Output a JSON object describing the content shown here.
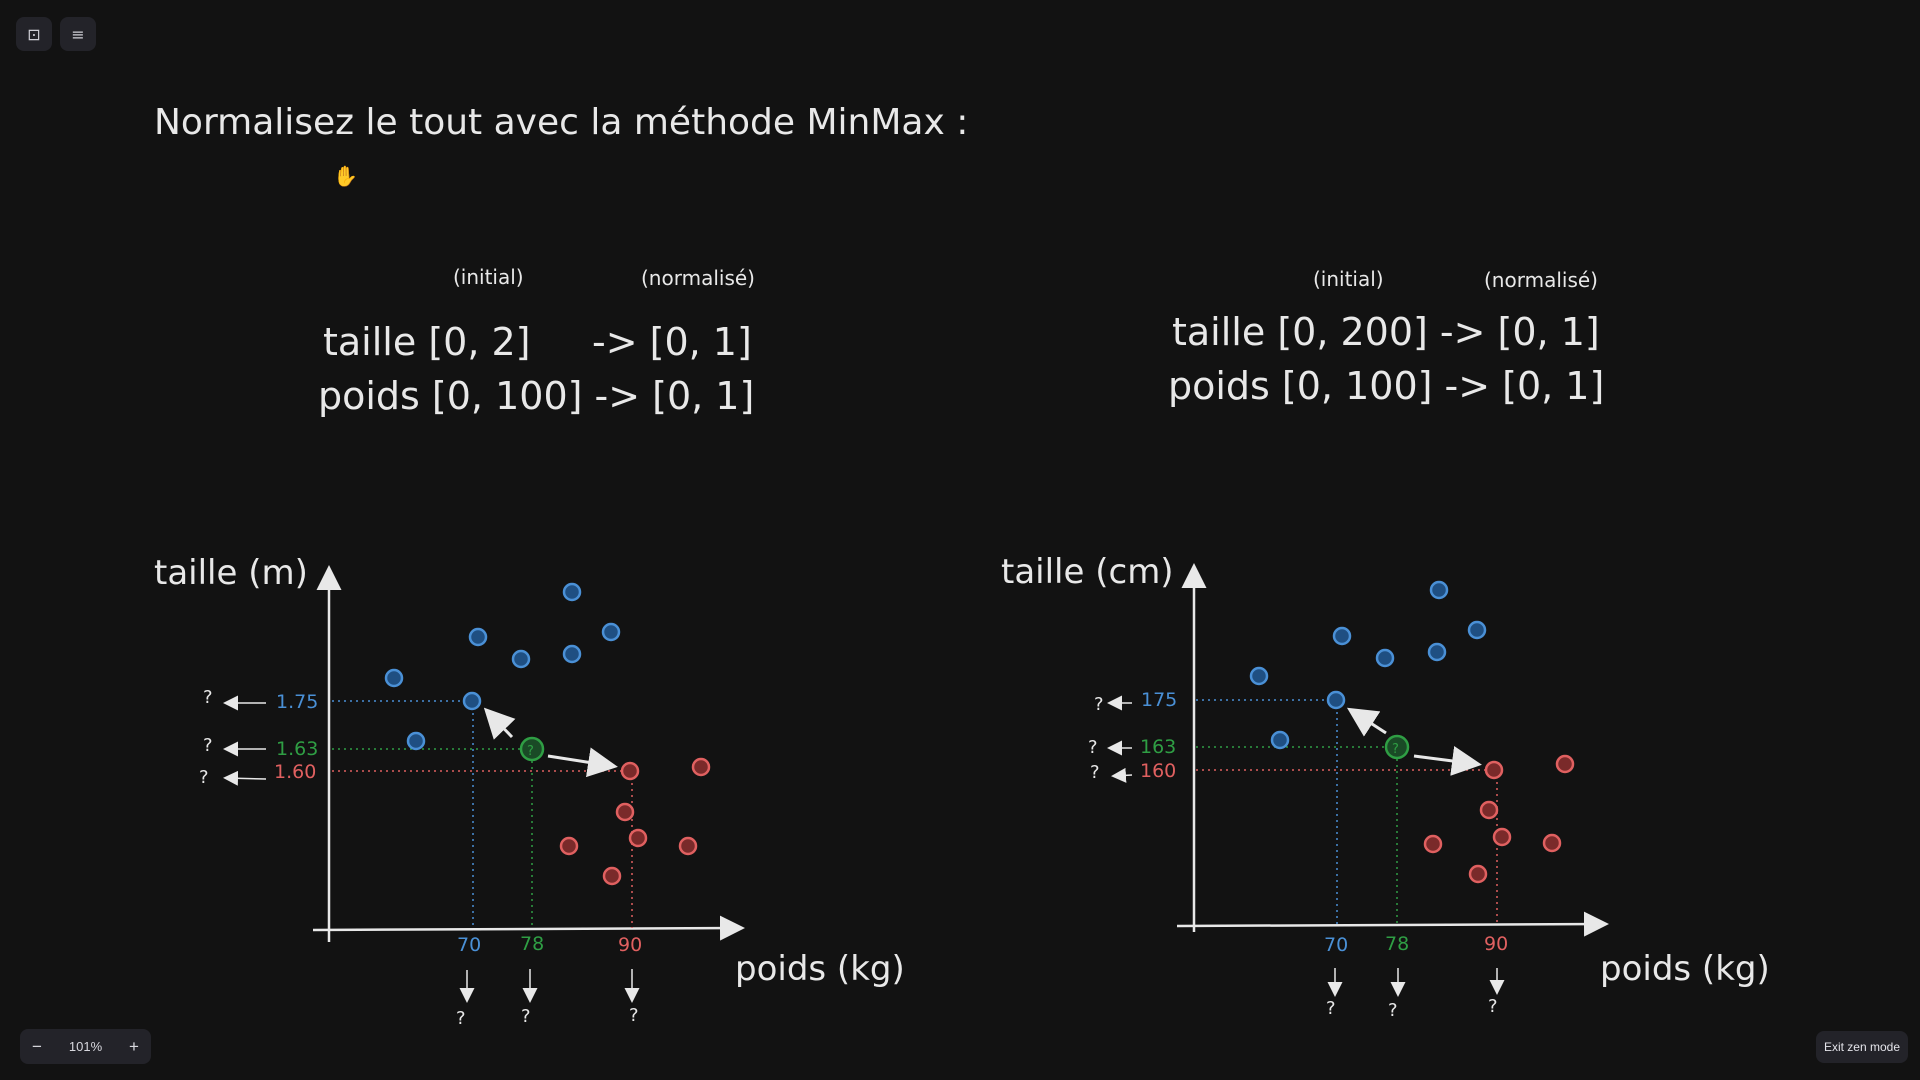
{
  "toolbar": {
    "sidebar_icon": "sidebar-toggle-icon",
    "menu_icon": "hamburger-menu-icon"
  },
  "zoom": {
    "minus": "−",
    "value": "101%",
    "plus": "+"
  },
  "exit_zen_label": "Exit zen mode",
  "colors": {
    "background": "#121212",
    "text": "#e8e8e8",
    "blue": "#4a90d6",
    "green": "#2f9e44",
    "red": "#e06060"
  },
  "title": "Normalisez le tout avec la méthode MinMax :",
  "left": {
    "col_initial": "(initial)",
    "col_normalise": "(normalisé)",
    "line1_a": "taille [0, 2]",
    "line1_b": "-> [0, 1]",
    "line2": "poids [0, 100] -> [0, 1]",
    "ylabel": "taille (m)",
    "xlabel": "poids (kg)",
    "y_ticks": [
      {
        "label": "1.75",
        "color": "blue"
      },
      {
        "label": "1.63",
        "color": "green"
      },
      {
        "label": "1.60",
        "color": "red"
      }
    ],
    "x_ticks": [
      {
        "label": "70",
        "color": "blue"
      },
      {
        "label": "78",
        "color": "green"
      },
      {
        "label": "90",
        "color": "red"
      }
    ],
    "q": "?"
  },
  "right": {
    "col_initial": "(initial)",
    "col_normalise": "(normalisé)",
    "line1": "taille [0, 200] -> [0, 1]",
    "line2": "poids [0, 100] -> [0, 1]",
    "ylabel": "taille (cm)",
    "xlabel": "poids (kg)",
    "y_ticks": [
      {
        "label": "175",
        "color": "blue"
      },
      {
        "label": "163",
        "color": "green"
      },
      {
        "label": "160",
        "color": "red"
      }
    ],
    "x_ticks": [
      {
        "label": "70",
        "color": "blue"
      },
      {
        "label": "78",
        "color": "green"
      },
      {
        "label": "90",
        "color": "red"
      }
    ],
    "q": "?"
  }
}
